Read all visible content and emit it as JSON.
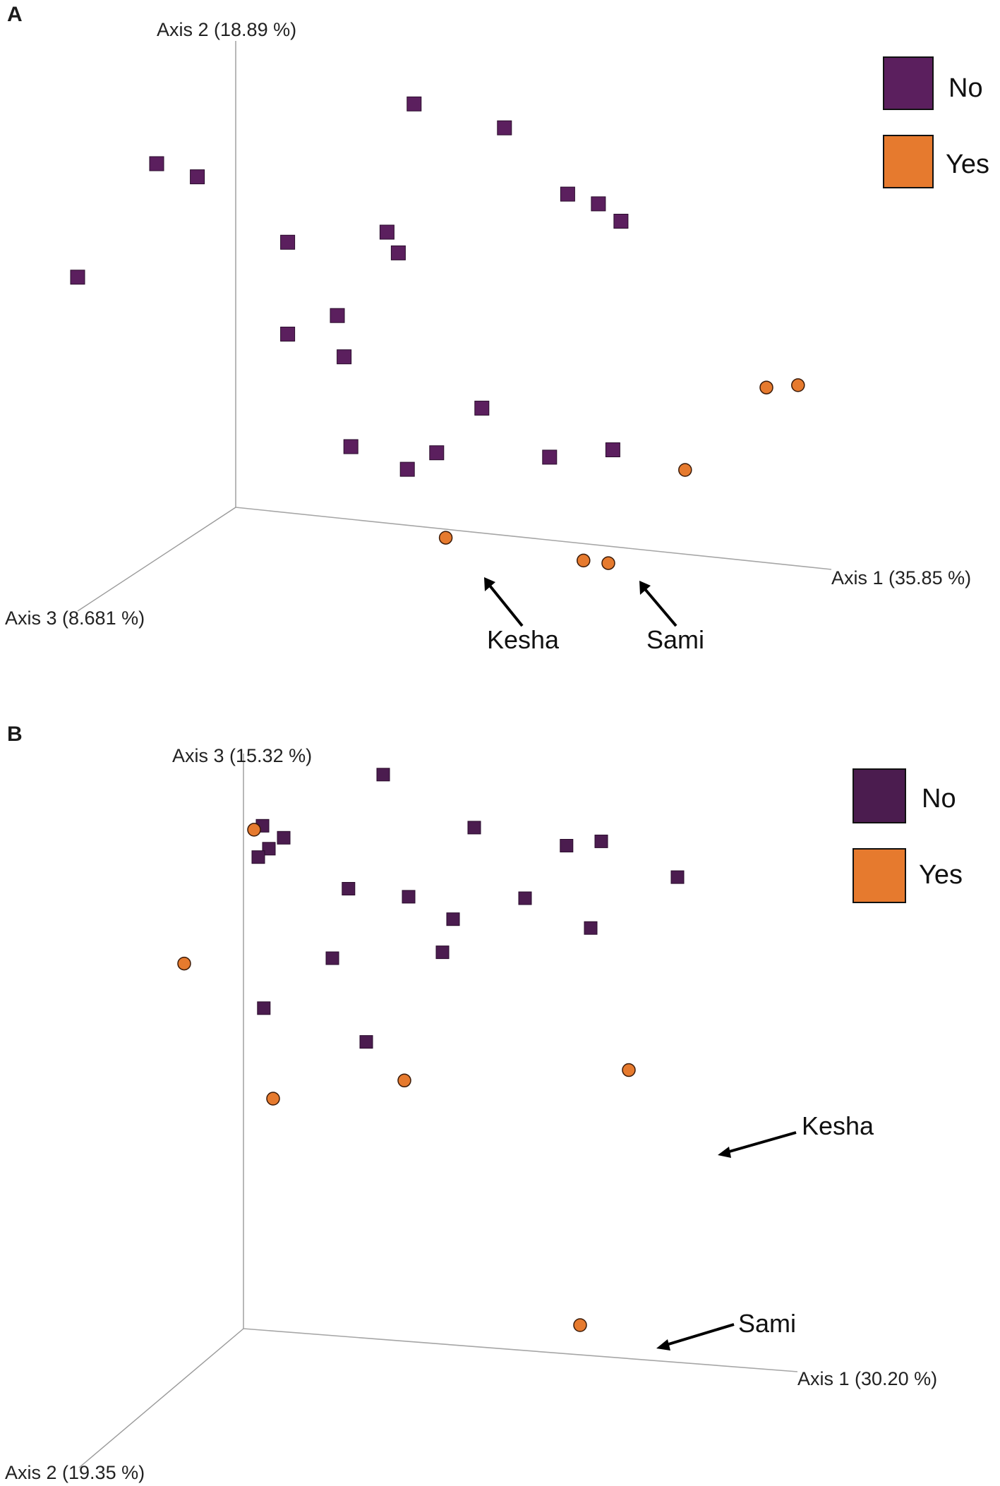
{
  "colors": {
    "no": "#5b1f5e",
    "yes": "#e67a2e",
    "no_b": "#4b1c4f"
  },
  "chart_data": [
    {
      "panel": "A",
      "type": "scatter",
      "subtype": "3d-pcoa",
      "axes": {
        "x_label": "Axis 1 (35.85 %)",
        "y_label": "Axis 2 (18.89 %)",
        "z_label": "Axis 3 (8.681 %)"
      },
      "legend": {
        "placement": "top-right",
        "entries": [
          {
            "name": "No",
            "marker": "square"
          },
          {
            "name": "Yes",
            "marker": "circle"
          }
        ]
      },
      "series": [
        {
          "name": "No",
          "points": [
            [
              0.395,
              0.905
            ],
            [
              0.595,
              0.874
            ],
            [
              0.735,
              0.746
            ],
            [
              0.803,
              0.732
            ],
            [
              0.853,
              0.7
            ],
            [
              -0.175,
              0.719
            ],
            [
              -0.085,
              0.7
            ],
            [
              0.335,
              0.624
            ],
            [
              0.36,
              0.582
            ],
            [
              0.115,
              0.58
            ],
            [
              -0.35,
              0.458
            ],
            [
              0.225,
              0.434
            ],
            [
              0.115,
              0.383
            ],
            [
              0.24,
              0.347
            ],
            [
              0.545,
              0.268
            ],
            [
              0.835,
              0.208
            ],
            [
              0.695,
              0.178
            ],
            [
              0.445,
              0.162
            ],
            [
              0.255,
              0.156
            ],
            [
              0.38,
              0.12
            ]
          ]
        },
        {
          "name": "Yes",
          "points": [
            [
              1.175,
              0.376
            ],
            [
              1.245,
              0.388
            ],
            [
              0.995,
              0.181
            ],
            [
              0.465,
              -0.018
            ],
            [
              0.77,
              -0.036
            ],
            [
              0.825,
              -0.036
            ]
          ]
        }
      ],
      "annotations": [
        {
          "text": "Kesha"
        },
        {
          "text": "Sami"
        }
      ]
    },
    {
      "panel": "B",
      "type": "scatter",
      "subtype": "3d-pcoa",
      "axes": {
        "x_label": "Axis 1 (30.20 %)",
        "y_label": "Axis 3 (15.32 %)",
        "z_label": "Axis 2 (19.35 %)"
      },
      "legend": {
        "placement": "top-right",
        "entries": [
          {
            "name": "No",
            "marker": "square"
          },
          {
            "name": "Yes",
            "marker": "circle"
          }
        ]
      },
      "series": [
        {
          "name": "No",
          "points": [
            [
              0.33,
              0.982
            ],
            [
              0.545,
              0.902
            ],
            [
              0.763,
              0.883
            ],
            [
              0.845,
              0.895
            ],
            [
              1.025,
              0.843
            ],
            [
              0.045,
              0.877
            ],
            [
              0.095,
              0.859
            ],
            [
              0.06,
              0.838
            ],
            [
              0.035,
              0.822
            ],
            [
              0.248,
              0.779
            ],
            [
              0.39,
              0.773
            ],
            [
              0.665,
              0.786
            ],
            [
              0.82,
              0.743
            ],
            [
              0.495,
              0.74
            ],
            [
              0.47,
              0.681
            ],
            [
              0.21,
              0.656
            ],
            [
              0.048,
              0.56
            ],
            [
              0.29,
              0.515
            ]
          ]
        },
        {
          "name": "Yes",
          "points": [
            [
              0.025,
              0.869
            ],
            [
              -0.14,
              0.627
            ],
            [
              0.07,
              0.404
            ],
            [
              0.38,
              0.453
            ],
            [
              0.91,
              0.501
            ],
            [
              0.795,
              0.051
            ]
          ]
        }
      ],
      "annotations": [
        {
          "text": "Kesha"
        },
        {
          "text": "Sami"
        }
      ]
    }
  ],
  "panels": [
    {
      "letter": "A",
      "legend": {
        "no_label": "No",
        "yes_label": "Yes"
      },
      "ann_kesha": "Kesha",
      "ann_sami": "Sami"
    },
    {
      "letter": "B",
      "legend": {
        "no_label": "No",
        "yes_label": "Yes"
      },
      "ann_kesha": "Kesha",
      "ann_sami": "Sami"
    }
  ]
}
